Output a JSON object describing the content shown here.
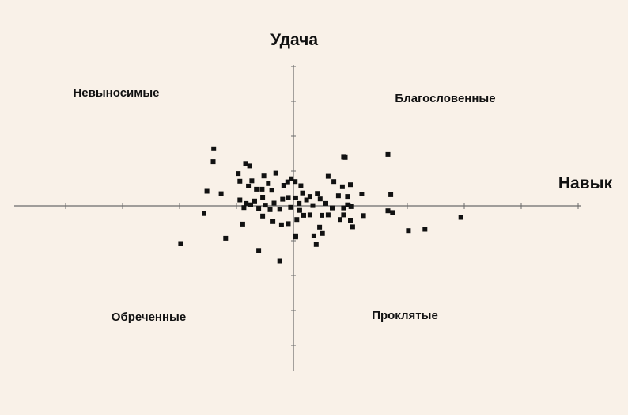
{
  "chart_data": {
    "type": "scatter",
    "xlabel": "Навык",
    "ylabel": "Удача",
    "xlim": [
      -5,
      5
    ],
    "ylim": [
      -5,
      5
    ],
    "grid": false,
    "axes_through_origin": true,
    "quadrant_labels": {
      "top_left": "Невыносимые",
      "top_right": "Благословенные",
      "bottom_left": "Обреченные",
      "bottom_right": "Проклятые"
    },
    "colors": {
      "background": "#f9f1e8",
      "points": "#111111",
      "axes": "#6b6b6b"
    },
    "series": [
      {
        "points": [
          [
            -1.41,
            1.27
          ],
          [
            -1.52,
            0.42
          ],
          [
            -1.27,
            0.35
          ],
          [
            -0.84,
            1.22
          ],
          [
            -0.77,
            1.15
          ],
          [
            -0.97,
            0.93
          ],
          [
            -0.94,
            0.71
          ],
          [
            -0.79,
            0.57
          ],
          [
            -0.73,
            0.72
          ],
          [
            -0.65,
            0.48
          ],
          [
            -0.55,
            0.48
          ],
          [
            -0.52,
            0.86
          ],
          [
            -0.31,
            0.94
          ],
          [
            -0.44,
            0.64
          ],
          [
            -0.38,
            0.45
          ],
          [
            -0.17,
            0.59
          ],
          [
            -0.1,
            0.69
          ],
          [
            -0.04,
            0.78
          ],
          [
            0.03,
            0.7
          ],
          [
            0.13,
            0.58
          ],
          [
            -0.83,
            0.07
          ],
          [
            -0.94,
            0.17
          ],
          [
            -0.87,
            -0.05
          ],
          [
            -0.75,
            0.03
          ],
          [
            -0.68,
            0.14
          ],
          [
            -0.61,
            -0.07
          ],
          [
            -0.54,
            0.25
          ],
          [
            -0.49,
            0.02
          ],
          [
            -0.41,
            -0.11
          ],
          [
            -0.34,
            0.08
          ],
          [
            -0.24,
            -0.1
          ],
          [
            -0.19,
            0.19
          ],
          [
            -0.09,
            0.24
          ],
          [
            -0.05,
            -0.04
          ],
          [
            0.04,
            0.23
          ],
          [
            0.1,
            0.07
          ],
          [
            0.16,
            0.37
          ],
          [
            0.23,
            0.17
          ],
          [
            0.29,
            0.27
          ],
          [
            0.34,
            0.01
          ],
          [
            0.42,
            0.36
          ],
          [
            0.47,
            0.2
          ],
          [
            0.57,
            0.07
          ],
          [
            0.71,
            0.7
          ],
          [
            0.86,
            0.55
          ],
          [
            0.95,
            0.27
          ],
          [
            0.61,
            0.85
          ],
          [
            0.91,
            1.39
          ],
          [
            1.0,
            0.61
          ],
          [
            0.79,
            0.29
          ],
          [
            0.61,
            -0.26
          ],
          [
            0.88,
            -0.26
          ],
          [
            1.2,
            0.34
          ],
          [
            1.66,
            -0.14
          ],
          [
            1.71,
            0.32
          ],
          [
            1.74,
            -0.19
          ],
          [
            1.01,
            -0.02
          ],
          [
            1.0,
            -0.41
          ],
          [
            0.95,
            0.03
          ],
          [
            0.88,
            -0.06
          ],
          [
            1.23,
            -0.28
          ],
          [
            1.04,
            -0.6
          ],
          [
            0.82,
            -0.39
          ],
          [
            0.5,
            -0.27
          ],
          [
            0.68,
            -0.06
          ],
          [
            0.29,
            -0.26
          ],
          [
            0.18,
            -0.27
          ],
          [
            0.11,
            -0.13
          ],
          [
            0.06,
            -0.39
          ],
          [
            -0.09,
            -0.51
          ],
          [
            -0.21,
            -0.54
          ],
          [
            -0.36,
            -0.45
          ],
          [
            -0.54,
            -0.29
          ],
          [
            -0.89,
            -0.52
          ],
          [
            -1.57,
            -0.22
          ],
          [
            -1.19,
            -0.93
          ],
          [
            -0.61,
            -1.28
          ],
          [
            -0.24,
            -1.58
          ],
          [
            0.04,
            -0.86
          ],
          [
            0.04,
            -0.89
          ],
          [
            0.46,
            -0.61
          ],
          [
            0.36,
            -0.86
          ],
          [
            0.51,
            -0.79
          ],
          [
            0.4,
            -1.11
          ],
          [
            2.31,
            -0.67
          ],
          [
            2.02,
            -0.71
          ],
          [
            2.94,
            -0.33
          ],
          [
            -1.98,
            -1.08
          ],
          [
            -1.4,
            1.64
          ],
          [
            0.88,
            1.4
          ],
          [
            1.66,
            1.48
          ]
        ]
      }
    ]
  }
}
